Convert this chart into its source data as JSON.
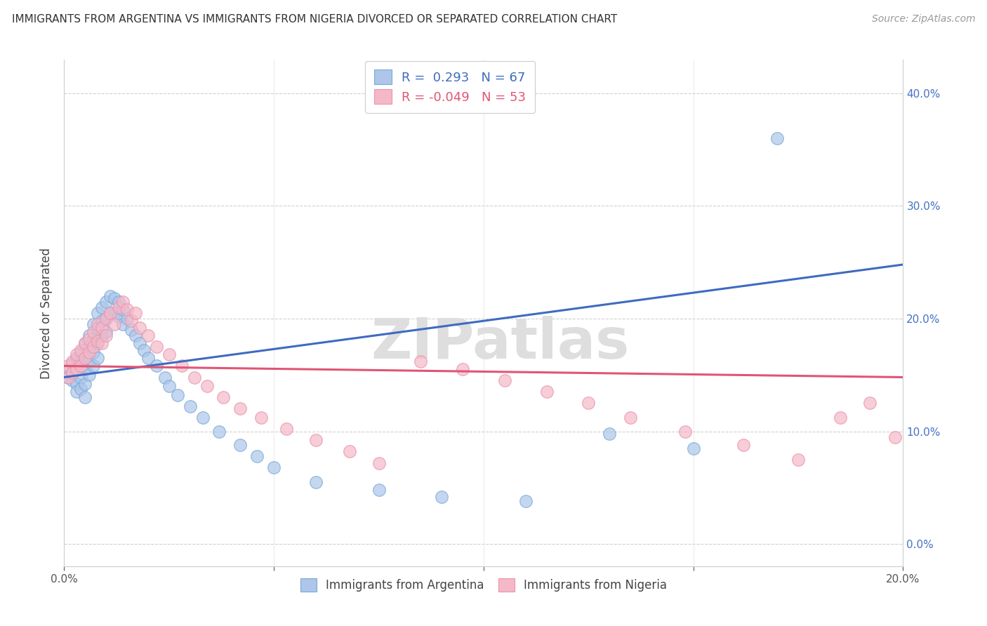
{
  "title": "IMMIGRANTS FROM ARGENTINA VS IMMIGRANTS FROM NIGERIA DIVORCED OR SEPARATED CORRELATION CHART",
  "source": "Source: ZipAtlas.com",
  "ylabel": "Divorced or Separated",
  "x_label_bottom_legend1": "Immigrants from Argentina",
  "x_label_bottom_legend2": "Immigrants from Nigeria",
  "legend1_r": " 0.293",
  "legend1_n": "67",
  "legend2_r": "-0.049",
  "legend2_n": "53",
  "xlim": [
    0.0,
    0.2
  ],
  "ylim": [
    -0.02,
    0.43
  ],
  "x_ticks": [
    0.0,
    0.05,
    0.1,
    0.15,
    0.2
  ],
  "y_ticks": [
    0.0,
    0.1,
    0.2,
    0.3,
    0.4
  ],
  "color_argentina_fill": "#adc6ea",
  "color_nigeria_fill": "#f5b8c8",
  "color_argentina_edge": "#7aaad4",
  "color_nigeria_edge": "#e895ae",
  "color_argentina_line": "#3f6bbf",
  "color_nigeria_line": "#e05575",
  "argentina_x": [
    0.001,
    0.001,
    0.002,
    0.002,
    0.002,
    0.003,
    0.003,
    0.003,
    0.003,
    0.004,
    0.004,
    0.004,
    0.004,
    0.005,
    0.005,
    0.005,
    0.005,
    0.005,
    0.006,
    0.006,
    0.006,
    0.006,
    0.007,
    0.007,
    0.007,
    0.007,
    0.008,
    0.008,
    0.008,
    0.008,
    0.009,
    0.009,
    0.009,
    0.01,
    0.01,
    0.01,
    0.011,
    0.011,
    0.012,
    0.012,
    0.013,
    0.013,
    0.014,
    0.014,
    0.015,
    0.016,
    0.017,
    0.018,
    0.019,
    0.02,
    0.022,
    0.024,
    0.025,
    0.027,
    0.03,
    0.033,
    0.037,
    0.042,
    0.046,
    0.05,
    0.06,
    0.075,
    0.09,
    0.11,
    0.13,
    0.15,
    0.17
  ],
  "argentina_y": [
    0.155,
    0.148,
    0.16,
    0.145,
    0.152,
    0.165,
    0.158,
    0.142,
    0.135,
    0.17,
    0.162,
    0.148,
    0.138,
    0.178,
    0.165,
    0.155,
    0.142,
    0.13,
    0.185,
    0.175,
    0.162,
    0.15,
    0.195,
    0.182,
    0.17,
    0.158,
    0.205,
    0.192,
    0.178,
    0.165,
    0.21,
    0.198,
    0.185,
    0.215,
    0.2,
    0.188,
    0.22,
    0.205,
    0.218,
    0.205,
    0.215,
    0.202,
    0.208,
    0.195,
    0.2,
    0.19,
    0.185,
    0.178,
    0.172,
    0.165,
    0.158,
    0.148,
    0.14,
    0.132,
    0.122,
    0.112,
    0.1,
    0.088,
    0.078,
    0.068,
    0.055,
    0.048,
    0.042,
    0.038,
    0.098,
    0.085,
    0.36
  ],
  "nigeria_x": [
    0.001,
    0.001,
    0.002,
    0.002,
    0.003,
    0.003,
    0.004,
    0.004,
    0.005,
    0.005,
    0.006,
    0.006,
    0.007,
    0.007,
    0.008,
    0.008,
    0.009,
    0.009,
    0.01,
    0.01,
    0.011,
    0.012,
    0.013,
    0.014,
    0.015,
    0.016,
    0.017,
    0.018,
    0.02,
    0.022,
    0.025,
    0.028,
    0.031,
    0.034,
    0.038,
    0.042,
    0.047,
    0.053,
    0.06,
    0.068,
    0.075,
    0.085,
    0.095,
    0.105,
    0.115,
    0.125,
    0.135,
    0.148,
    0.162,
    0.175,
    0.185,
    0.192,
    0.198
  ],
  "nigeria_y": [
    0.158,
    0.148,
    0.162,
    0.152,
    0.168,
    0.155,
    0.172,
    0.158,
    0.178,
    0.165,
    0.182,
    0.17,
    0.188,
    0.175,
    0.195,
    0.18,
    0.192,
    0.178,
    0.2,
    0.185,
    0.205,
    0.195,
    0.21,
    0.215,
    0.208,
    0.198,
    0.205,
    0.192,
    0.185,
    0.175,
    0.168,
    0.158,
    0.148,
    0.14,
    0.13,
    0.12,
    0.112,
    0.102,
    0.092,
    0.082,
    0.072,
    0.162,
    0.155,
    0.145,
    0.135,
    0.125,
    0.112,
    0.1,
    0.088,
    0.075,
    0.112,
    0.125,
    0.095
  ],
  "blue_line_x0": 0.0,
  "blue_line_y0": 0.148,
  "blue_line_x1": 0.2,
  "blue_line_y1": 0.248,
  "pink_line_x0": 0.0,
  "pink_line_y0": 0.158,
  "pink_line_x1": 0.2,
  "pink_line_y1": 0.148
}
